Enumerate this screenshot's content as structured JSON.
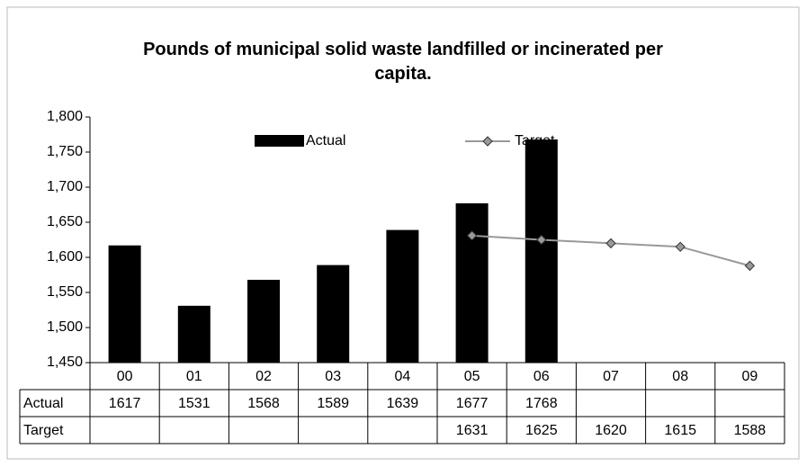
{
  "chart_data": {
    "type": "bar_line_table",
    "title": "Pounds of municipal solid waste landfilled or incinerated per capita.",
    "categories": [
      "00",
      "01",
      "02",
      "03",
      "04",
      "05",
      "06",
      "07",
      "08",
      "09"
    ],
    "series": [
      {
        "name": "Actual",
        "type": "bar",
        "color": "#000000",
        "values": [
          1617,
          1531,
          1568,
          1589,
          1639,
          1677,
          1768,
          null,
          null,
          null
        ]
      },
      {
        "name": "Target",
        "type": "line",
        "color": "#999999",
        "values": [
          null,
          null,
          null,
          null,
          null,
          1631,
          1625,
          1620,
          1615,
          1588
        ]
      }
    ],
    "ylim": [
      1450,
      1800
    ],
    "yticks": [
      {
        "value": 1450,
        "label": "1,450"
      },
      {
        "value": 1500,
        "label": "1,500"
      },
      {
        "value": 1550,
        "label": "1,550"
      },
      {
        "value": 1600,
        "label": "1,600"
      },
      {
        "value": 1650,
        "label": "1,650"
      },
      {
        "value": 1700,
        "label": "1,700"
      },
      {
        "value": 1750,
        "label": "1,750"
      },
      {
        "value": 1800,
        "label": "1,800"
      }
    ],
    "legend": "top"
  }
}
